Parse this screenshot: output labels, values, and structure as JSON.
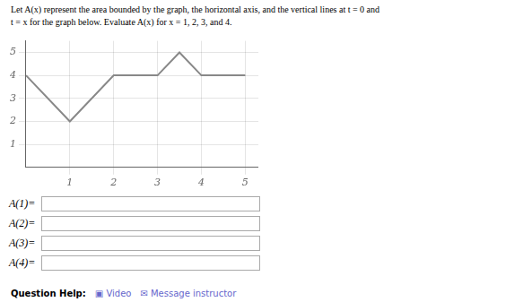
{
  "chart_data": {
    "type": "line",
    "title": [
      "Let A(x) represent the area bounded by the graph, the horizontal axis, and the vertical lines at t = 0 and",
      "t = x for the graph below. Evaluate A(x) for x = 1, 2, 3, and 4."
    ],
    "x": [
      0,
      1,
      2,
      3,
      3.5,
      4,
      5
    ],
    "values": [
      4,
      2,
      4,
      4,
      5,
      4,
      4
    ],
    "color": "#888888",
    "xlim": [
      0,
      5.3
    ],
    "ylim": [
      0,
      5.5
    ],
    "xticks": [
      1,
      2,
      3,
      4,
      5
    ],
    "yticks": [
      1,
      2,
      3,
      4,
      5
    ],
    "grid": true,
    "annotations": [
      "A(1)=",
      "A(2)=",
      "A(3)=",
      "A(4)=",
      "Question Help:",
      "▣ Video",
      "✉ Message instructor"
    ]
  }
}
